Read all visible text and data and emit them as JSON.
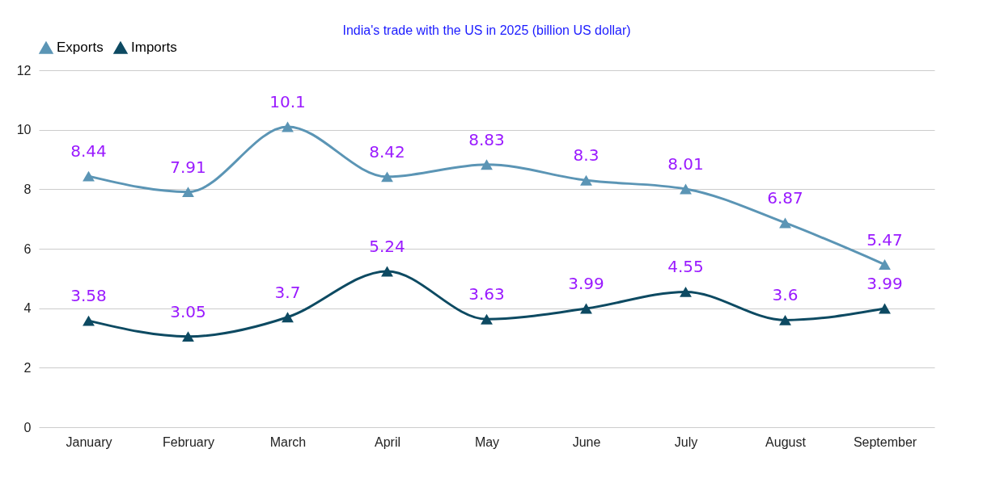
{
  "chart_data": {
    "type": "line",
    "title": "India's trade with the US in 2025 (billion US dollar)",
    "categories": [
      "January",
      "February",
      "March",
      "April",
      "May",
      "June",
      "July",
      "August",
      "September"
    ],
    "series": [
      {
        "name": "Exports",
        "color": "#5b95b5",
        "values": [
          8.44,
          7.91,
          10.1,
          8.42,
          8.83,
          8.3,
          8.01,
          6.87,
          5.47
        ]
      },
      {
        "name": "Imports",
        "color": "#0d4a62",
        "values": [
          3.58,
          3.05,
          3.7,
          5.24,
          3.63,
          3.99,
          4.55,
          3.6,
          3.99
        ]
      }
    ],
    "ylim": [
      0,
      12
    ],
    "yticks": [
      0,
      2,
      4,
      6,
      8,
      10,
      12
    ],
    "grid": "y",
    "legend": "top",
    "marker": "triangle",
    "line_style": "solid",
    "data_labels": true
  }
}
